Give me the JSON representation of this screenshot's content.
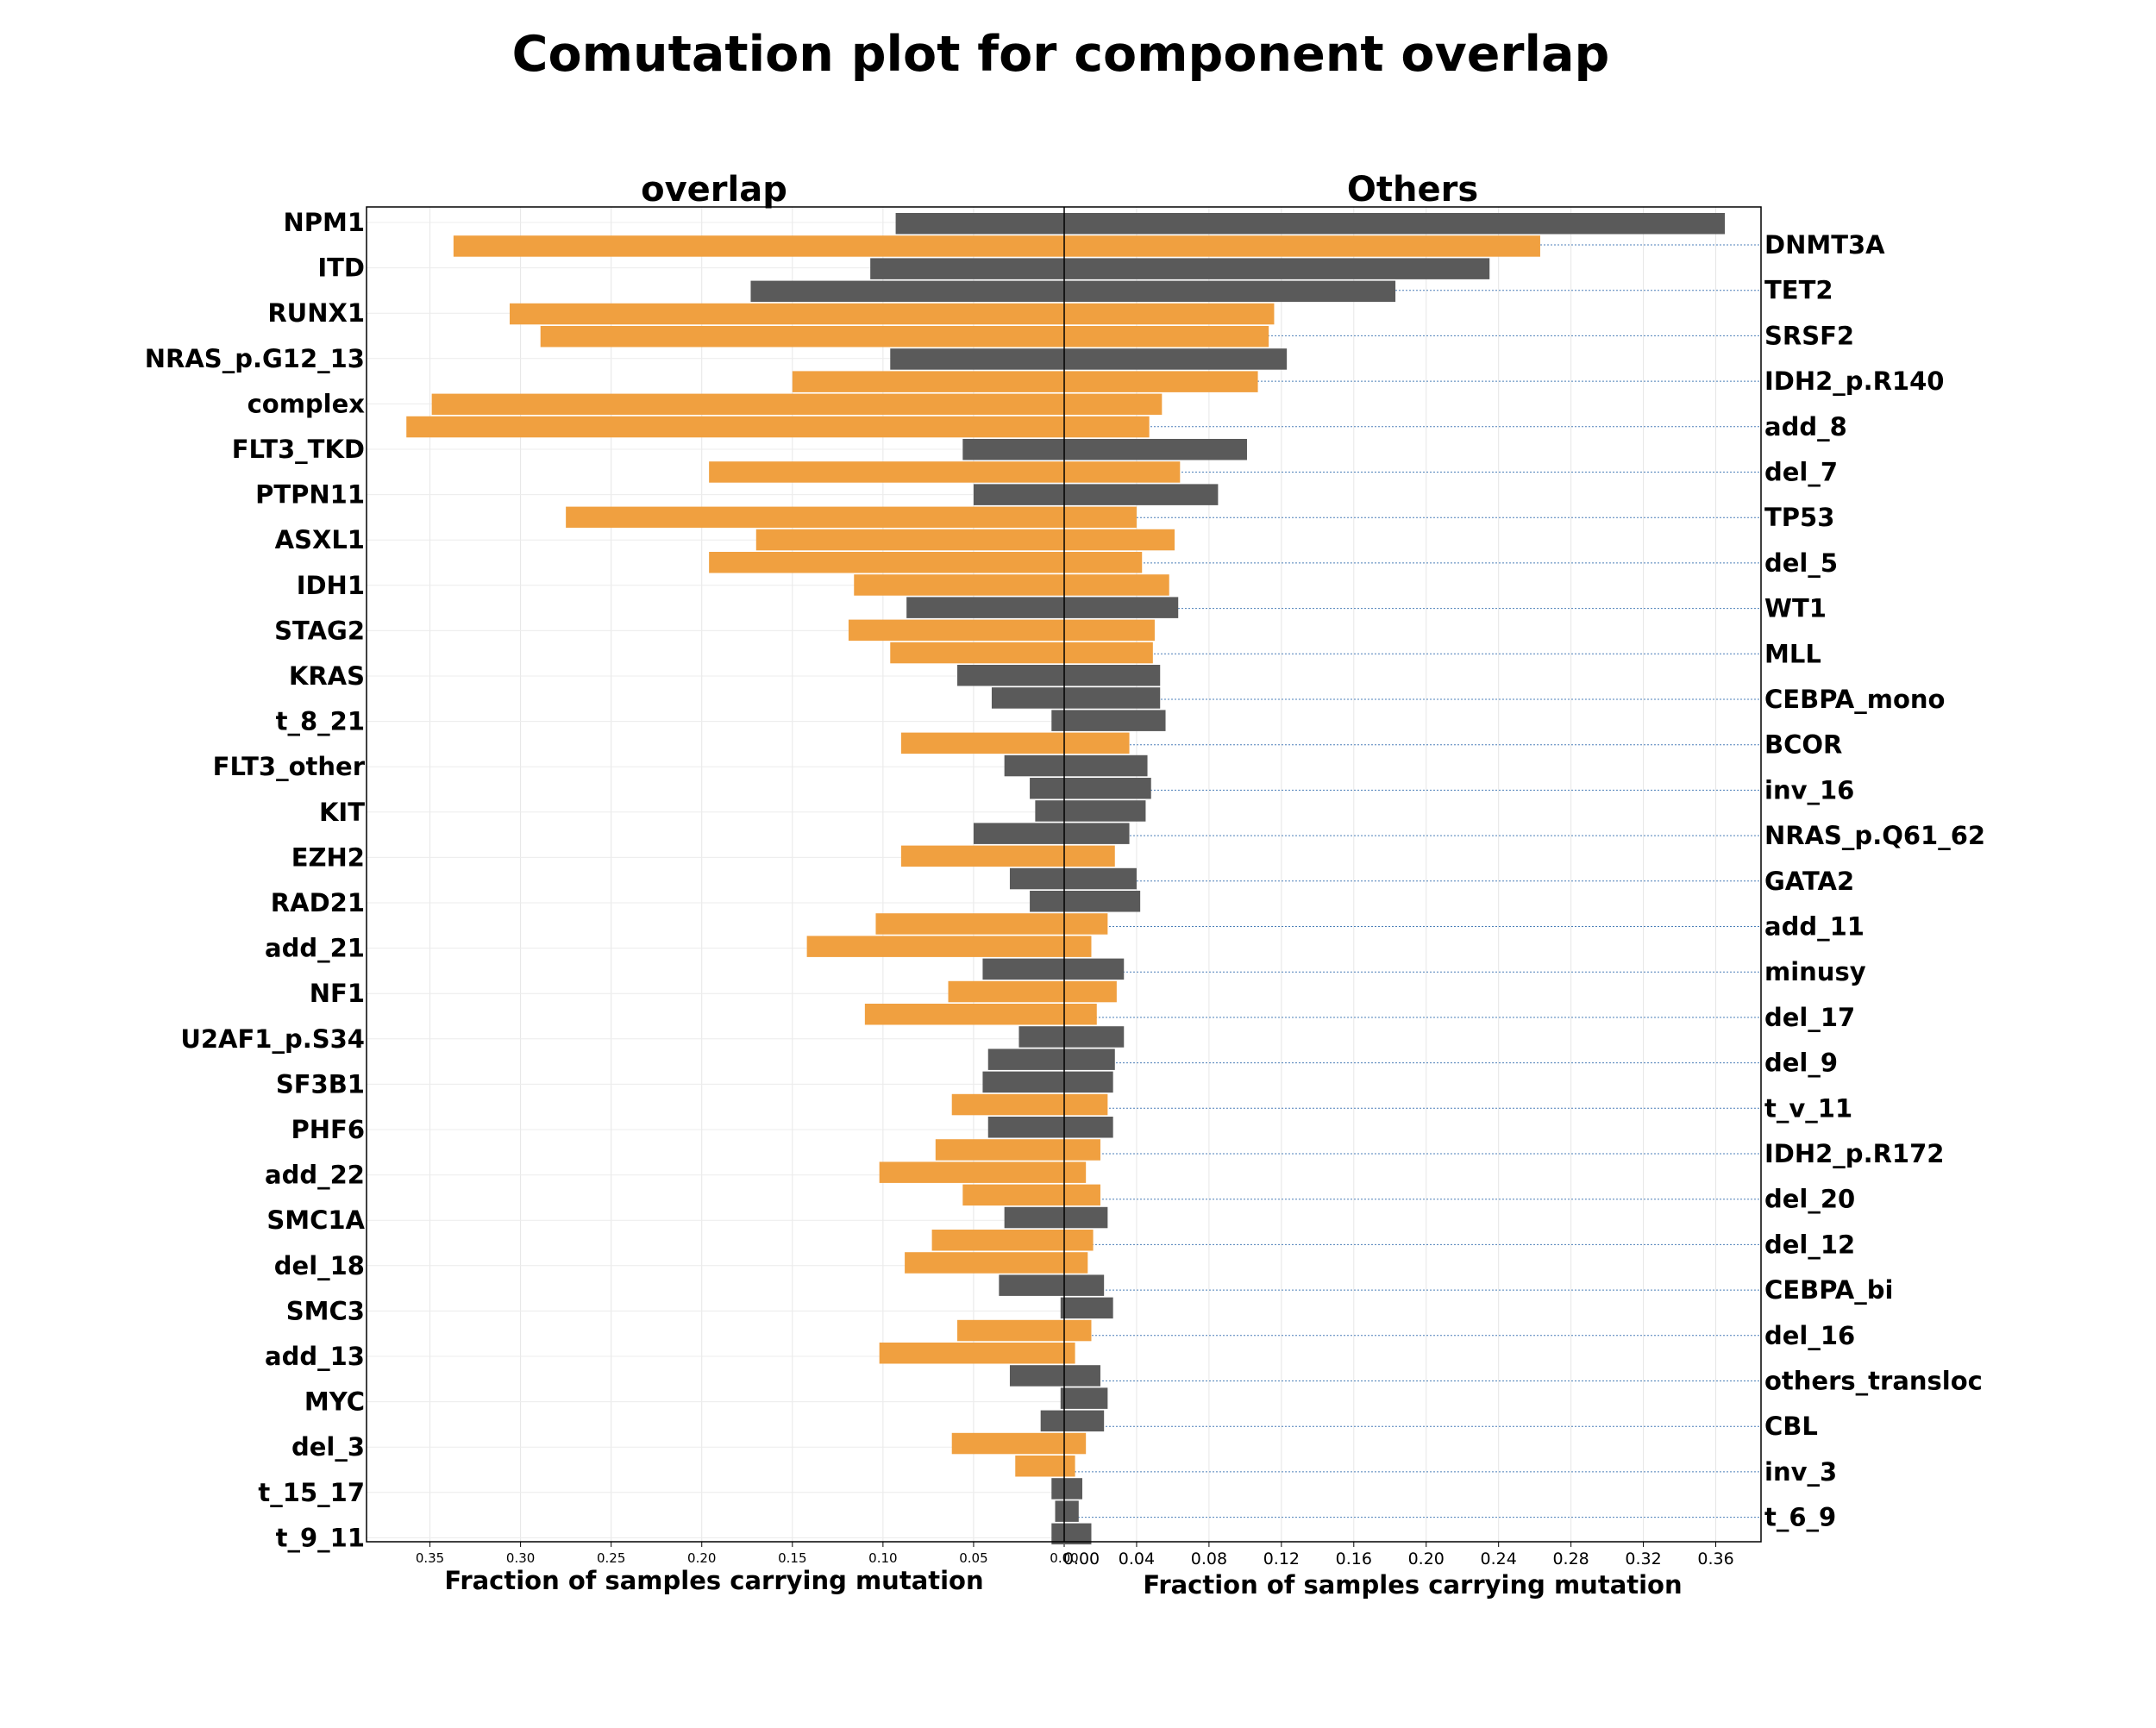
{
  "chart_data": {
    "type": "bar",
    "title": "Comutation plot for component overlap",
    "orientation": "horizontal-butterfly",
    "colors": {
      "orange": "#F0A040",
      "dark": "#5A5A5A",
      "frame": "#000000",
      "guide": "#4B7FB8"
    },
    "left_panel": {
      "title": "overlap",
      "xlabel": "Fraction of samples carrying mutation",
      "xlim": [
        0.385,
        0
      ],
      "x_ticks": [
        "0.35",
        "0.30",
        "0.25",
        "0.20",
        "0.15",
        "0.10",
        "0.05",
        "0.00"
      ],
      "x_tick_values": [
        0.35,
        0.3,
        0.25,
        0.2,
        0.15,
        0.1,
        0.05,
        0.0
      ],
      "labels": [
        "NPM1",
        "ITD",
        "RUNX1",
        "NRAS_p.G12_13",
        "complex",
        "FLT3_TKD",
        "PTPN11",
        "ASXL1",
        "IDH1",
        "STAG2",
        "KRAS",
        "t_8_21",
        "FLT3_other",
        "KIT",
        "EZH2",
        "RAD21",
        "add_21",
        "NF1",
        "U2AF1_p.S34",
        "SF3B1",
        "PHF6",
        "add_22",
        "SMC1A",
        "del_18",
        "SMC3",
        "add_13",
        "MYC",
        "del_3",
        "t_15_17",
        "t_9_11"
      ],
      "bars": [
        {
          "v": 0.093,
          "c": "dark"
        },
        {
          "v": 0.337,
          "c": "orange"
        },
        {
          "v": 0.107,
          "c": "dark"
        },
        {
          "v": 0.173,
          "c": "dark"
        },
        {
          "v": 0.306,
          "c": "orange"
        },
        {
          "v": 0.289,
          "c": "orange"
        },
        {
          "v": 0.096,
          "c": "dark"
        },
        {
          "v": 0.15,
          "c": "orange"
        },
        {
          "v": 0.349,
          "c": "orange"
        },
        {
          "v": 0.363,
          "c": "orange"
        },
        {
          "v": 0.056,
          "c": "dark"
        },
        {
          "v": 0.196,
          "c": "orange"
        },
        {
          "v": 0.05,
          "c": "dark"
        },
        {
          "v": 0.275,
          "c": "orange"
        },
        {
          "v": 0.17,
          "c": "orange"
        },
        {
          "v": 0.196,
          "c": "orange"
        },
        {
          "v": 0.116,
          "c": "orange"
        },
        {
          "v": 0.087,
          "c": "dark"
        },
        {
          "v": 0.119,
          "c": "orange"
        },
        {
          "v": 0.096,
          "c": "orange"
        },
        {
          "v": 0.059,
          "c": "dark"
        },
        {
          "v": 0.04,
          "c": "dark"
        },
        {
          "v": 0.007,
          "c": "dark"
        },
        {
          "v": 0.09,
          "c": "orange"
        },
        {
          "v": 0.033,
          "c": "dark"
        },
        {
          "v": 0.019,
          "c": "dark"
        },
        {
          "v": 0.016,
          "c": "dark"
        },
        {
          "v": 0.05,
          "c": "dark"
        },
        {
          "v": 0.09,
          "c": "orange"
        },
        {
          "v": 0.03,
          "c": "dark"
        },
        {
          "v": 0.019,
          "c": "dark"
        },
        {
          "v": 0.104,
          "c": "orange"
        },
        {
          "v": 0.142,
          "c": "orange"
        },
        {
          "v": 0.045,
          "c": "dark"
        },
        {
          "v": 0.064,
          "c": "orange"
        },
        {
          "v": 0.11,
          "c": "orange"
        },
        {
          "v": 0.025,
          "c": "dark"
        },
        {
          "v": 0.042,
          "c": "dark"
        },
        {
          "v": 0.045,
          "c": "dark"
        },
        {
          "v": 0.062,
          "c": "orange"
        },
        {
          "v": 0.042,
          "c": "dark"
        },
        {
          "v": 0.071,
          "c": "orange"
        },
        {
          "v": 0.102,
          "c": "orange"
        },
        {
          "v": 0.056,
          "c": "orange"
        },
        {
          "v": 0.033,
          "c": "dark"
        },
        {
          "v": 0.073,
          "c": "orange"
        },
        {
          "v": 0.088,
          "c": "orange"
        },
        {
          "v": 0.036,
          "c": "dark"
        },
        {
          "v": 0.002,
          "c": "dark"
        },
        {
          "v": 0.059,
          "c": "orange"
        },
        {
          "v": 0.102,
          "c": "orange"
        },
        {
          "v": 0.03,
          "c": "dark"
        },
        {
          "v": 0.002,
          "c": "dark"
        },
        {
          "v": 0.013,
          "c": "dark"
        },
        {
          "v": 0.062,
          "c": "orange"
        },
        {
          "v": 0.027,
          "c": "orange"
        },
        {
          "v": 0.007,
          "c": "dark"
        },
        {
          "v": 0.005,
          "c": "dark"
        },
        {
          "v": 0.007,
          "c": "dark"
        }
      ]
    },
    "right_panel": {
      "title": "Others",
      "xlabel": "Fraction of samples carrying mutation",
      "xlim": [
        0,
        0.385
      ],
      "x_ticks": [
        "0.00",
        "0.04",
        "0.08",
        "0.12",
        "0.16",
        "0.20",
        "0.24",
        "0.28",
        "0.32",
        "0.36"
      ],
      "x_tick_values": [
        0.0,
        0.04,
        0.08,
        0.12,
        0.16,
        0.2,
        0.24,
        0.28,
        0.32,
        0.36
      ],
      "labels": [
        "DNMT3A",
        "TET2",
        "SRSF2",
        "IDH2_p.R140",
        "add_8",
        "del_7",
        "TP53",
        "del_5",
        "WT1",
        "MLL",
        "CEBPA_mono",
        "BCOR",
        "inv_16",
        "NRAS_p.Q61_62",
        "GATA2",
        "add_11",
        "minusy",
        "del_17",
        "del_9",
        "t_v_11",
        "IDH2_p.R172",
        "del_20",
        "del_12",
        "CEBPA_bi",
        "del_16",
        "others_transloc",
        "CBL",
        "inv_3",
        "t_6_9"
      ],
      "bars": [
        {
          "v": 0.365,
          "c": "dark"
        },
        {
          "v": 0.263,
          "c": "orange"
        },
        {
          "v": 0.235,
          "c": "dark"
        },
        {
          "v": 0.183,
          "c": "dark"
        },
        {
          "v": 0.116,
          "c": "orange"
        },
        {
          "v": 0.113,
          "c": "orange"
        },
        {
          "v": 0.123,
          "c": "dark"
        },
        {
          "v": 0.107,
          "c": "orange"
        },
        {
          "v": 0.054,
          "c": "orange"
        },
        {
          "v": 0.047,
          "c": "orange"
        },
        {
          "v": 0.101,
          "c": "dark"
        },
        {
          "v": 0.064,
          "c": "orange"
        },
        {
          "v": 0.085,
          "c": "dark"
        },
        {
          "v": 0.04,
          "c": "orange"
        },
        {
          "v": 0.061,
          "c": "orange"
        },
        {
          "v": 0.043,
          "c": "orange"
        },
        {
          "v": 0.058,
          "c": "orange"
        },
        {
          "v": 0.063,
          "c": "dark"
        },
        {
          "v": 0.05,
          "c": "orange"
        },
        {
          "v": 0.049,
          "c": "orange"
        },
        {
          "v": 0.053,
          "c": "dark"
        },
        {
          "v": 0.053,
          "c": "dark"
        },
        {
          "v": 0.056,
          "c": "dark"
        },
        {
          "v": 0.036,
          "c": "orange"
        },
        {
          "v": 0.046,
          "c": "dark"
        },
        {
          "v": 0.048,
          "c": "dark"
        },
        {
          "v": 0.045,
          "c": "dark"
        },
        {
          "v": 0.036,
          "c": "dark"
        },
        {
          "v": 0.028,
          "c": "orange"
        },
        {
          "v": 0.04,
          "c": "dark"
        },
        {
          "v": 0.042,
          "c": "dark"
        },
        {
          "v": 0.024,
          "c": "orange"
        },
        {
          "v": 0.015,
          "c": "orange"
        },
        {
          "v": 0.033,
          "c": "dark"
        },
        {
          "v": 0.029,
          "c": "orange"
        },
        {
          "v": 0.018,
          "c": "orange"
        },
        {
          "v": 0.033,
          "c": "dark"
        },
        {
          "v": 0.028,
          "c": "dark"
        },
        {
          "v": 0.027,
          "c": "dark"
        },
        {
          "v": 0.024,
          "c": "orange"
        },
        {
          "v": 0.027,
          "c": "dark"
        },
        {
          "v": 0.02,
          "c": "orange"
        },
        {
          "v": 0.012,
          "c": "orange"
        },
        {
          "v": 0.02,
          "c": "orange"
        },
        {
          "v": 0.024,
          "c": "dark"
        },
        {
          "v": 0.016,
          "c": "orange"
        },
        {
          "v": 0.013,
          "c": "orange"
        },
        {
          "v": 0.022,
          "c": "dark"
        },
        {
          "v": 0.027,
          "c": "dark"
        },
        {
          "v": 0.015,
          "c": "orange"
        },
        {
          "v": 0.006,
          "c": "orange"
        },
        {
          "v": 0.02,
          "c": "dark"
        },
        {
          "v": 0.024,
          "c": "dark"
        },
        {
          "v": 0.022,
          "c": "dark"
        },
        {
          "v": 0.012,
          "c": "orange"
        },
        {
          "v": 0.006,
          "c": "orange"
        },
        {
          "v": 0.01,
          "c": "dark"
        },
        {
          "v": 0.008,
          "c": "dark"
        },
        {
          "v": 0.015,
          "c": "dark"
        }
      ]
    }
  }
}
